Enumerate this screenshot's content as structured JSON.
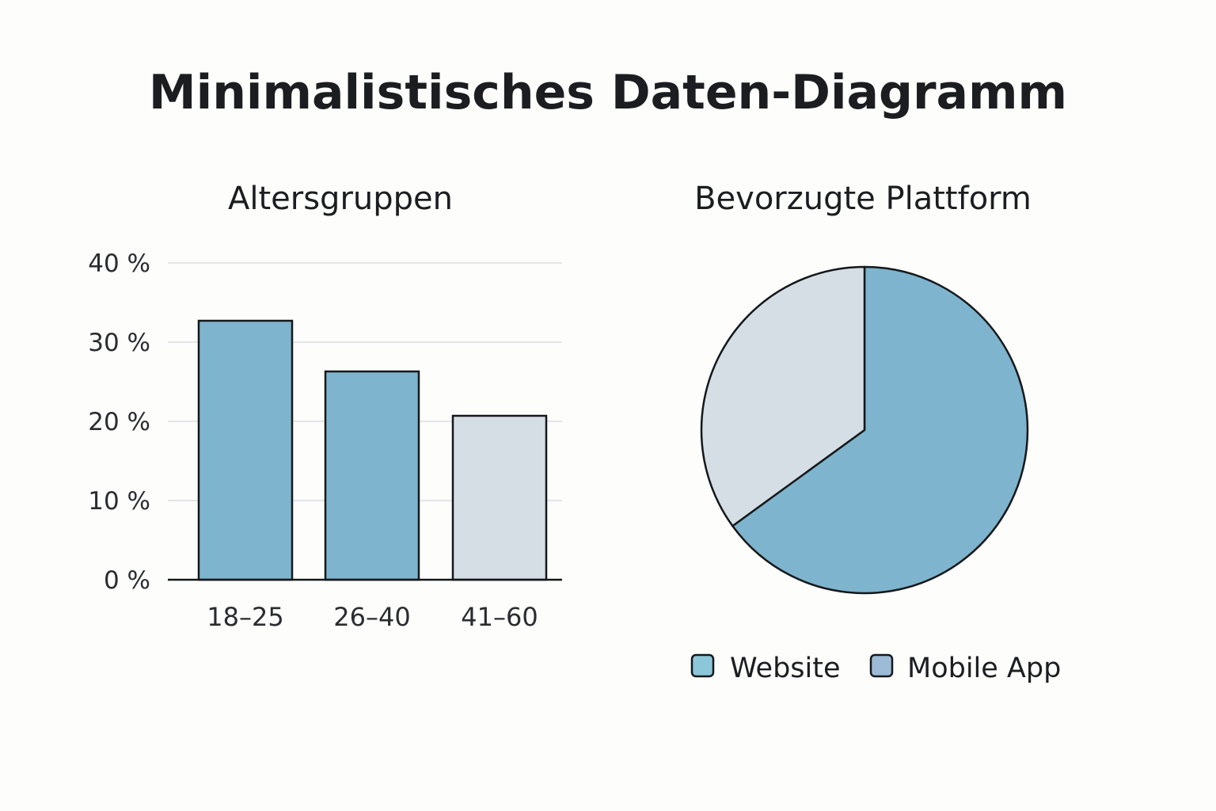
{
  "title": "Minimalistisches Daten-Diagramm",
  "colors": {
    "primary": "#7eb4cd",
    "secondary": "#d6dee5",
    "legend_website": "#8cc7d9",
    "legend_mobile": "#9dbbd6",
    "outline": "#15181b",
    "grid": "#e3e5e8"
  },
  "chart_data": [
    {
      "type": "bar",
      "title": "Altersgruppen",
      "categories": [
        "18–25",
        "26–40",
        "41–60"
      ],
      "values": [
        32.7,
        26.3,
        20.7
      ],
      "bar_colors": [
        "primary",
        "primary",
        "secondary"
      ],
      "ylim": [
        0,
        40
      ],
      "yticks": [
        0,
        10,
        20,
        30,
        40
      ],
      "ytick_labels": [
        "0 %",
        "10 %",
        "20 %",
        "30 %",
        "40 %"
      ],
      "grid": true
    },
    {
      "type": "pie",
      "title": "Bevorzugte Plattform",
      "slices": [
        {
          "label": "Website",
          "value": 65,
          "color": "primary"
        },
        {
          "label": "Mobile App",
          "value": 35,
          "color": "secondary"
        }
      ],
      "legend": {
        "placement": "bottom",
        "items": [
          {
            "label": "Website",
            "color": "legend_website"
          },
          {
            "label": "Mobile App",
            "color": "legend_mobile"
          }
        ]
      }
    }
  ]
}
